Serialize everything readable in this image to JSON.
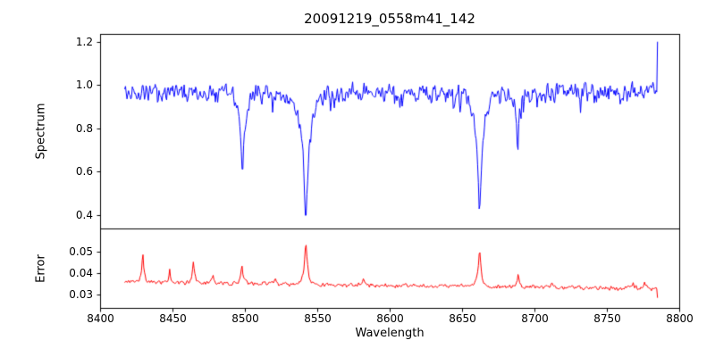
{
  "figure": {
    "title": "20091219_0558m41_142",
    "xlabel": "Wavelength",
    "background": "#ffffff"
  },
  "chart_data": [
    {
      "type": "line",
      "title": "20091219_0558m41_142",
      "ylabel": "Spectrum",
      "color": "#0000ff",
      "grid": false,
      "legend": "none",
      "xlim": [
        8400,
        8800
      ],
      "ylim": [
        0.337,
        1.236
      ],
      "ytick_labels": [
        "0.4",
        "0.6",
        "0.8",
        "1.0",
        "1.2"
      ],
      "x_start": 8417,
      "x_end": 8785,
      "n_points": 700,
      "seed": 20091219,
      "baseline": 0.968,
      "noise_amplitude": 0.055,
      "dip_probability": 0.06,
      "dip_amplitude": 0.07,
      "absorption_lines": [
        {
          "center": 8498.0,
          "depth": 0.4,
          "width": 2.0
        },
        {
          "center": 8542.1,
          "depth": 0.585,
          "width": 3.2
        },
        {
          "center": 8662.1,
          "depth": 0.575,
          "width": 2.8
        },
        {
          "center": 8688.6,
          "depth": 0.21,
          "width": 1.5
        }
      ],
      "edge_spike": {
        "x": 8783,
        "value": 1.2
      }
    },
    {
      "type": "line",
      "ylabel": "Error",
      "color": "#ff0000",
      "grid": false,
      "legend": "none",
      "xlim": [
        8400,
        8800
      ],
      "xtick_labels": [
        "8400",
        "8450",
        "8500",
        "8550",
        "8600",
        "8650",
        "8700",
        "8750",
        "8800"
      ],
      "ylim": [
        0.0238,
        0.0608
      ],
      "ytick_labels": [
        "0.03",
        "0.04",
        "0.05"
      ],
      "x_start": 8417,
      "x_end": 8785,
      "n_points": 700,
      "seed": 558,
      "baseline_start": 0.0358,
      "baseline_end": 0.0328,
      "noise_amplitude": 0.0012,
      "peaks": [
        {
          "center": 8429.5,
          "height": 0.0145,
          "width": 1.0
        },
        {
          "center": 8448.0,
          "height": 0.0075,
          "width": 0.8
        },
        {
          "center": 8464.5,
          "height": 0.011,
          "width": 1.0
        },
        {
          "center": 8478.0,
          "height": 0.004,
          "width": 0.8
        },
        {
          "center": 8498.0,
          "height": 0.009,
          "width": 1.2
        },
        {
          "center": 8521.0,
          "height": 0.003,
          "width": 0.8
        },
        {
          "center": 8542.1,
          "height": 0.0215,
          "width": 1.3
        },
        {
          "center": 8582.0,
          "height": 0.0035,
          "width": 1.0
        },
        {
          "center": 8662.1,
          "height": 0.0195,
          "width": 1.3
        },
        {
          "center": 8688.6,
          "height": 0.006,
          "width": 1.0
        },
        {
          "center": 8712.0,
          "height": 0.0025,
          "width": 0.8
        },
        {
          "center": 8768.0,
          "height": 0.003,
          "width": 1.2
        },
        {
          "center": 8776.0,
          "height": 0.0035,
          "width": 1.0
        }
      ],
      "end_drop": 0.0285
    }
  ]
}
